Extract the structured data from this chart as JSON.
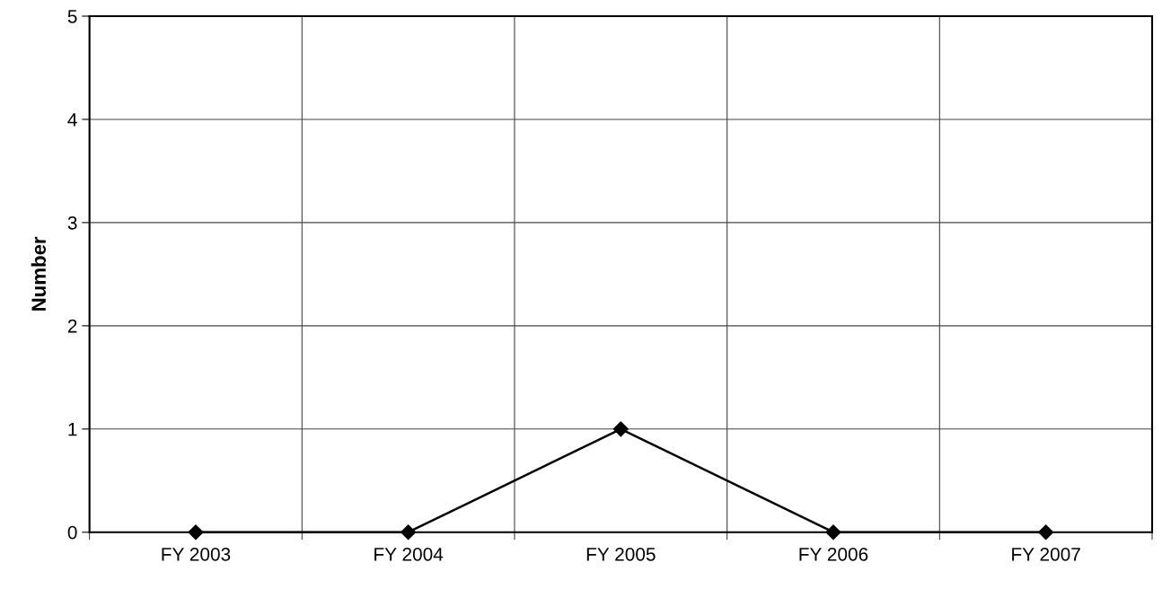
{
  "chart_data": {
    "type": "line",
    "ylabel": "Number",
    "categories": [
      "FY 2003",
      "FY 2004",
      "FY 2005",
      "FY 2006",
      "FY 2007"
    ],
    "series": [
      {
        "color": "#000000",
        "values": [
          0,
          0,
          1,
          0,
          0
        ]
      }
    ],
    "ylim": [
      0,
      5
    ],
    "yticks": [
      0,
      1,
      2,
      3,
      4,
      5
    ],
    "grid": true,
    "marker": "diamond",
    "line_style": "solid"
  }
}
